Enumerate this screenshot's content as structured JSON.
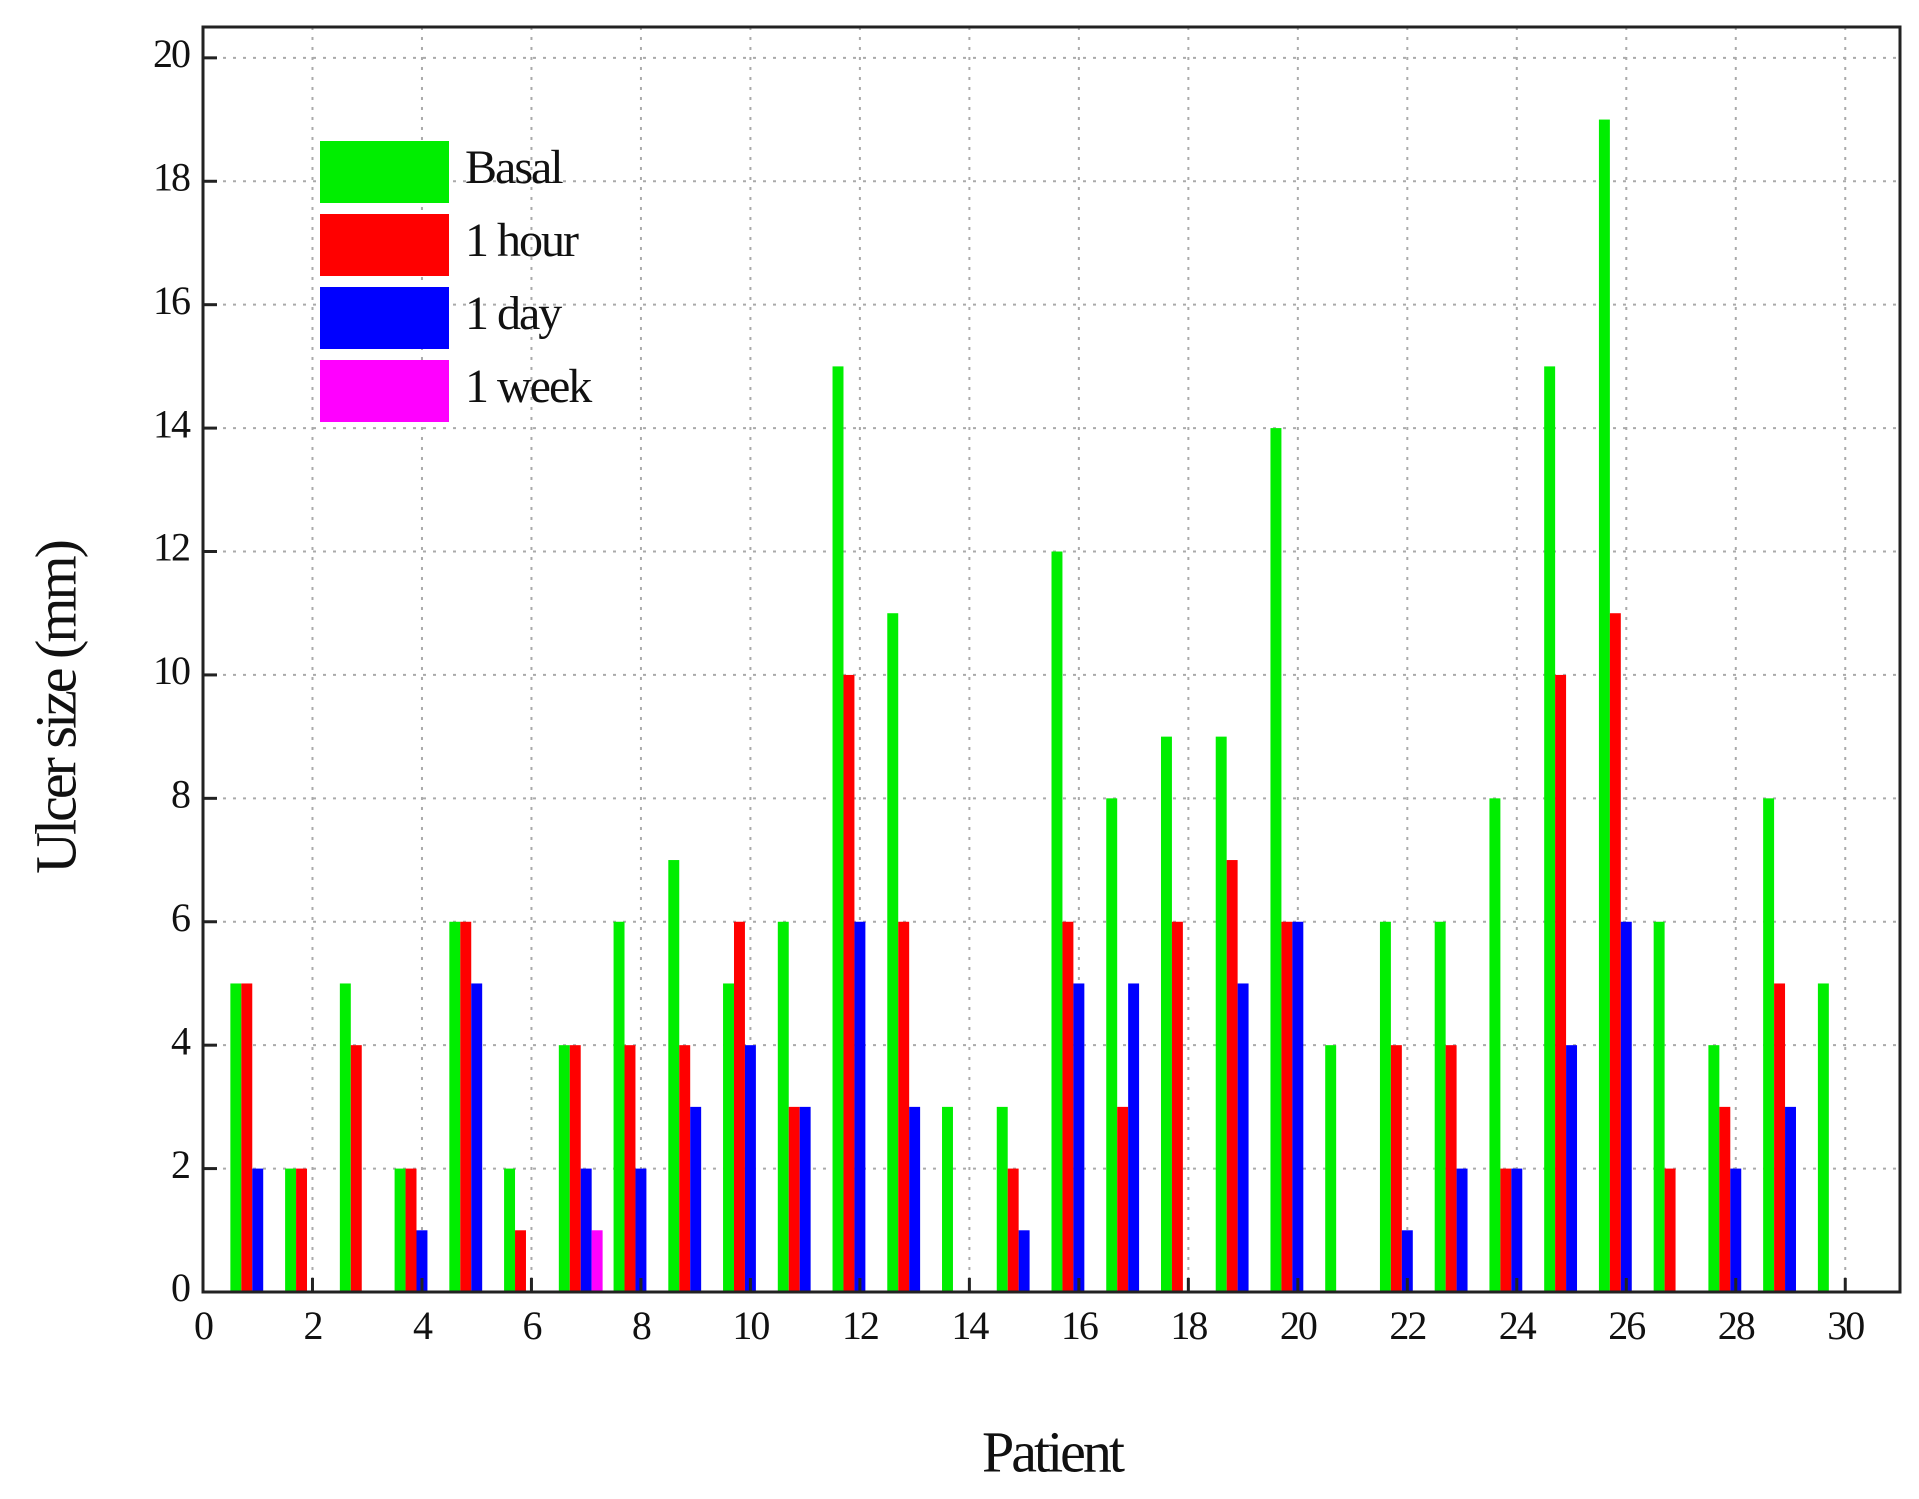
{
  "chart_data": {
    "type": "bar",
    "x_label": "Patient",
    "y_label": "Ulcer size (mm)",
    "x": [
      1,
      2,
      3,
      4,
      5,
      6,
      7,
      8,
      9,
      10,
      11,
      12,
      13,
      14,
      15,
      16,
      17,
      18,
      19,
      20,
      21,
      22,
      23,
      24,
      25,
      26,
      27,
      28,
      29,
      30
    ],
    "series": [
      {
        "name": "Basal",
        "color": "#00ee00",
        "values": [
          5,
          2,
          5,
          2,
          6,
          2,
          4,
          6,
          7,
          5,
          6,
          15,
          11,
          3,
          3,
          12,
          8,
          9,
          9,
          14,
          4,
          6,
          6,
          8,
          15,
          19,
          6,
          4,
          8,
          5
        ]
      },
      {
        "name": "1 hour",
        "color": "#ff0000",
        "values": [
          5,
          2,
          4,
          2,
          6,
          1,
          4,
          4,
          4,
          6,
          3,
          10,
          6,
          0,
          2,
          6,
          3,
          6,
          7,
          6,
          0,
          4,
          4,
          2,
          10,
          11,
          2,
          3,
          5,
          0
        ]
      },
      {
        "name": "1 day",
        "color": "#0000ff",
        "values": [
          2,
          0,
          0,
          1,
          5,
          0,
          2,
          2,
          3,
          4,
          3,
          6,
          3,
          0,
          1,
          5,
          5,
          0,
          5,
          6,
          0,
          1,
          2,
          2,
          4,
          6,
          0,
          2,
          3,
          0
        ]
      },
      {
        "name": "1 week",
        "color": "#ff00ff",
        "values": [
          0,
          0,
          0,
          0,
          0,
          0,
          1,
          0,
          0,
          0,
          0,
          0,
          0,
          0,
          0,
          0,
          0,
          0,
          0,
          0,
          0,
          0,
          0,
          0,
          0,
          0,
          0,
          0,
          0,
          0
        ]
      }
    ],
    "xlim": [
      0,
      31
    ],
    "xticks": [
      0,
      2,
      4,
      6,
      8,
      10,
      12,
      14,
      16,
      18,
      20,
      22,
      24,
      26,
      28,
      30
    ],
    "ylim": [
      0,
      20.5
    ],
    "yticks": [
      0,
      2,
      4,
      6,
      8,
      10,
      12,
      14,
      16,
      18,
      20
    ],
    "grid": true,
    "legend": "upper-left"
  }
}
